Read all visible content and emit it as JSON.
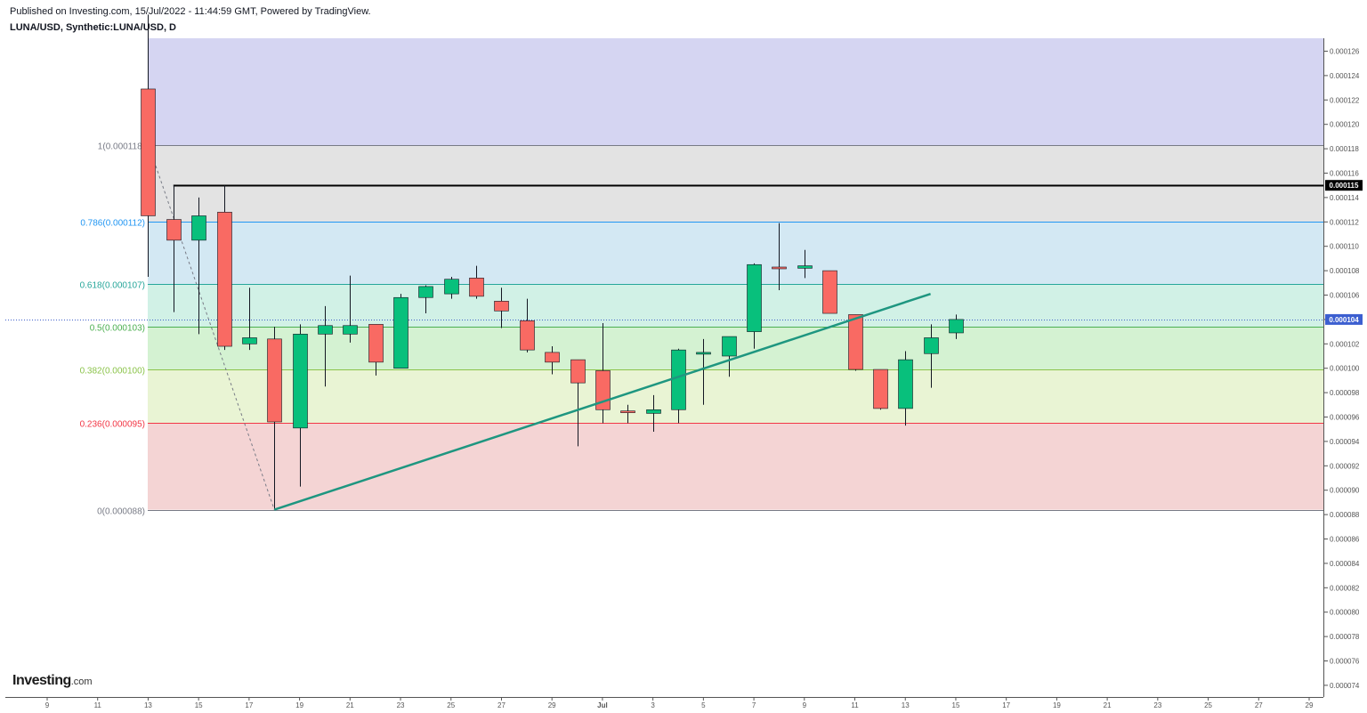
{
  "header": {
    "published": "Published on Investing.com, 15/Jul/2022 - 11:44:59 GMT, Powered by TradingView.",
    "symbol": "LUNA/USD, Synthetic:LUNA/USD, D"
  },
  "logo": {
    "brand": "Investing",
    "suffix": ".com"
  },
  "chart_data": {
    "type": "candlestick",
    "timeframe": "D",
    "x_tick_labels": [
      "9",
      "11",
      "13",
      "15",
      "17",
      "19",
      "21",
      "23",
      "25",
      "27",
      "29",
      "Jul",
      "3",
      "5",
      "7",
      "9",
      "11",
      "13",
      "15",
      "17",
      "19",
      "21",
      "23",
      "25",
      "27",
      "29"
    ],
    "y_tick_labels": [
      "0.000126",
      "0.000124",
      "0.000122",
      "0.000120",
      "0.000118",
      "0.000116",
      "0.000114",
      "0.000112",
      "0.000110",
      "0.000108",
      "0.000106",
      "0.000104",
      "0.000102",
      "0.000100",
      "0.000098",
      "0.000096",
      "0.000094",
      "0.000092",
      "0.000090",
      "0.000088",
      "0.000086",
      "0.000084",
      "0.000082",
      "0.000080",
      "0.000078",
      "0.000076",
      "0.000074"
    ],
    "ylim": [
      7.3e-05,
      0.000127
    ],
    "current_price": "0.000104",
    "horizontal_line": {
      "value": 0.000115,
      "label": "0.000115"
    },
    "fib_levels": [
      {
        "ratio": 1,
        "value": 0.0001183,
        "label": "1(0.000118)",
        "color": "#787b86",
        "fill": "#d5d5f2"
      },
      {
        "ratio": 0.786,
        "value": 0.000112,
        "label": "0.786(0.000112)",
        "color": "#2196f3",
        "fill": "#e3e3e3"
      },
      {
        "ratio": 0.618,
        "value": 0.0001069,
        "label": "0.618(0.000107)",
        "color": "#26a69a",
        "fill": "#d3e8f3"
      },
      {
        "ratio": 0.5,
        "value": 0.0001034,
        "label": "0.5(0.000103)",
        "color": "#4caf50",
        "fill": "#d1f1e6"
      },
      {
        "ratio": 0.382,
        "value": 9.99e-05,
        "label": "0.382(0.000100)",
        "color": "#8bc34a",
        "fill": "#d4f2d2"
      },
      {
        "ratio": 0.236,
        "value": 9.55e-05,
        "label": "0.236(0.000095)",
        "color": "#f23645",
        "fill": "#e9f4d4"
      },
      {
        "ratio": 0,
        "value": 8.84e-05,
        "label": "0(0.000088)",
        "color": "#787b86",
        "fill": "#f4d4d4"
      }
    ],
    "trendline": {
      "from": {
        "day": 18,
        "value": 8.84e-05
      },
      "to": {
        "day": 44,
        "value": 0.0001061
      },
      "color": "#1e9680"
    },
    "fib_diagonal": {
      "from": {
        "day": 13.3,
        "value": 0.0001166
      },
      "to": {
        "day": 18,
        "value": 8.84e-05
      }
    },
    "candles": [
      {
        "day": 13,
        "open": 0.0001229,
        "high": 0.000129,
        "low": 0.0001075,
        "close": 0.0001125
      },
      {
        "day": 14,
        "open": 0.0001122,
        "high": 0.000115,
        "low": 0.0001046,
        "close": 0.0001105
      },
      {
        "day": 15,
        "open": 0.0001105,
        "high": 0.000114,
        "low": 0.0001028,
        "close": 0.0001125
      },
      {
        "day": 16,
        "open": 0.0001128,
        "high": 0.000115,
        "low": 0.0001015,
        "close": 0.0001018
      },
      {
        "day": 17,
        "open": 0.000102,
        "high": 0.0001066,
        "low": 0.0001015,
        "close": 0.0001025
      },
      {
        "day": 18,
        "open": 0.0001024,
        "high": 0.0001034,
        "low": 8.84e-05,
        "close": 9.56e-05
      },
      {
        "day": 19,
        "open": 9.51e-05,
        "high": 0.0001036,
        "low": 9.03e-05,
        "close": 0.0001028
      },
      {
        "day": 20,
        "open": 0.0001028,
        "high": 0.0001051,
        "low": 9.85e-05,
        "close": 0.0001035
      },
      {
        "day": 21,
        "open": 0.0001028,
        "high": 0.0001076,
        "low": 0.0001021,
        "close": 0.0001035
      },
      {
        "day": 22,
        "open": 0.0001036,
        "high": 0.0001036,
        "low": 9.94e-05,
        "close": 0.0001005
      },
      {
        "day": 23,
        "open": 0.0001,
        "high": 0.0001061,
        "low": 0.0001,
        "close": 0.0001058
      },
      {
        "day": 24,
        "open": 0.0001058,
        "high": 0.0001068,
        "low": 0.0001045,
        "close": 0.0001067
      },
      {
        "day": 25,
        "open": 0.0001061,
        "high": 0.0001075,
        "low": 0.0001057,
        "close": 0.0001073
      },
      {
        "day": 26,
        "open": 0.0001074,
        "high": 0.0001084,
        "low": 0.0001057,
        "close": 0.0001059
      },
      {
        "day": 27,
        "open": 0.0001055,
        "high": 0.0001066,
        "low": 0.0001033,
        "close": 0.0001047
      },
      {
        "day": 28,
        "open": 0.0001039,
        "high": 0.0001057,
        "low": 0.0001013,
        "close": 0.0001015
      },
      {
        "day": 29,
        "open": 0.0001013,
        "high": 0.0001018,
        "low": 9.95e-05,
        "close": 0.0001005
      },
      {
        "day": 30,
        "open": 0.0001007,
        "high": 0.0001007,
        "low": 9.36e-05,
        "close": 9.88e-05
      },
      {
        "day": 31,
        "open": 9.98e-05,
        "high": 0.0001037,
        "low": 9.55e-05,
        "close": 9.66e-05
      },
      {
        "day": 32,
        "open": 9.65e-05,
        "high": 9.7e-05,
        "low": 9.55e-05,
        "close": 9.64e-05
      },
      {
        "day": 33,
        "open": 9.63e-05,
        "high": 9.78e-05,
        "low": 9.48e-05,
        "close": 9.66e-05
      },
      {
        "day": 34,
        "open": 9.66e-05,
        "high": 0.0001016,
        "low": 9.55e-05,
        "close": 0.0001015
      },
      {
        "day": 35,
        "open": 0.0001013,
        "high": 0.0001024,
        "low": 9.7e-05,
        "close": 0.0001013
      },
      {
        "day": 36,
        "open": 0.000101,
        "high": 0.0001026,
        "low": 9.93e-05,
        "close": 0.0001026
      },
      {
        "day": 37,
        "open": 0.000103,
        "high": 0.0001086,
        "low": 0.0001016,
        "close": 0.0001085
      },
      {
        "day": 38,
        "open": 0.0001083,
        "high": 0.0001119,
        "low": 0.0001064,
        "close": 0.0001082
      },
      {
        "day": 39,
        "open": 0.0001082,
        "high": 0.0001097,
        "low": 0.0001074,
        "close": 0.0001084
      },
      {
        "day": 40,
        "open": 0.000108,
        "high": 0.000108,
        "low": 0.0001045,
        "close": 0.0001045
      },
      {
        "day": 41,
        "open": 0.0001044,
        "high": 0.0001044,
        "low": 9.98e-05,
        "close": 9.99e-05
      },
      {
        "day": 42,
        "open": 9.99e-05,
        "high": 9.99e-05,
        "low": 9.66e-05,
        "close": 9.67e-05
      },
      {
        "day": 43,
        "open": 9.67e-05,
        "high": 0.0001014,
        "low": 9.53e-05,
        "close": 0.0001007
      },
      {
        "day": 44,
        "open": 0.0001012,
        "high": 0.0001036,
        "low": 9.84e-05,
        "close": 0.0001025
      },
      {
        "day": 45,
        "open": 0.0001029,
        "high": 0.0001044,
        "low": 0.0001024,
        "close": 0.000104
      }
    ],
    "colors": {
      "up": "#08c07c",
      "down": "#f96a63",
      "axis_text": "#555555",
      "wick": "#131722"
    }
  }
}
